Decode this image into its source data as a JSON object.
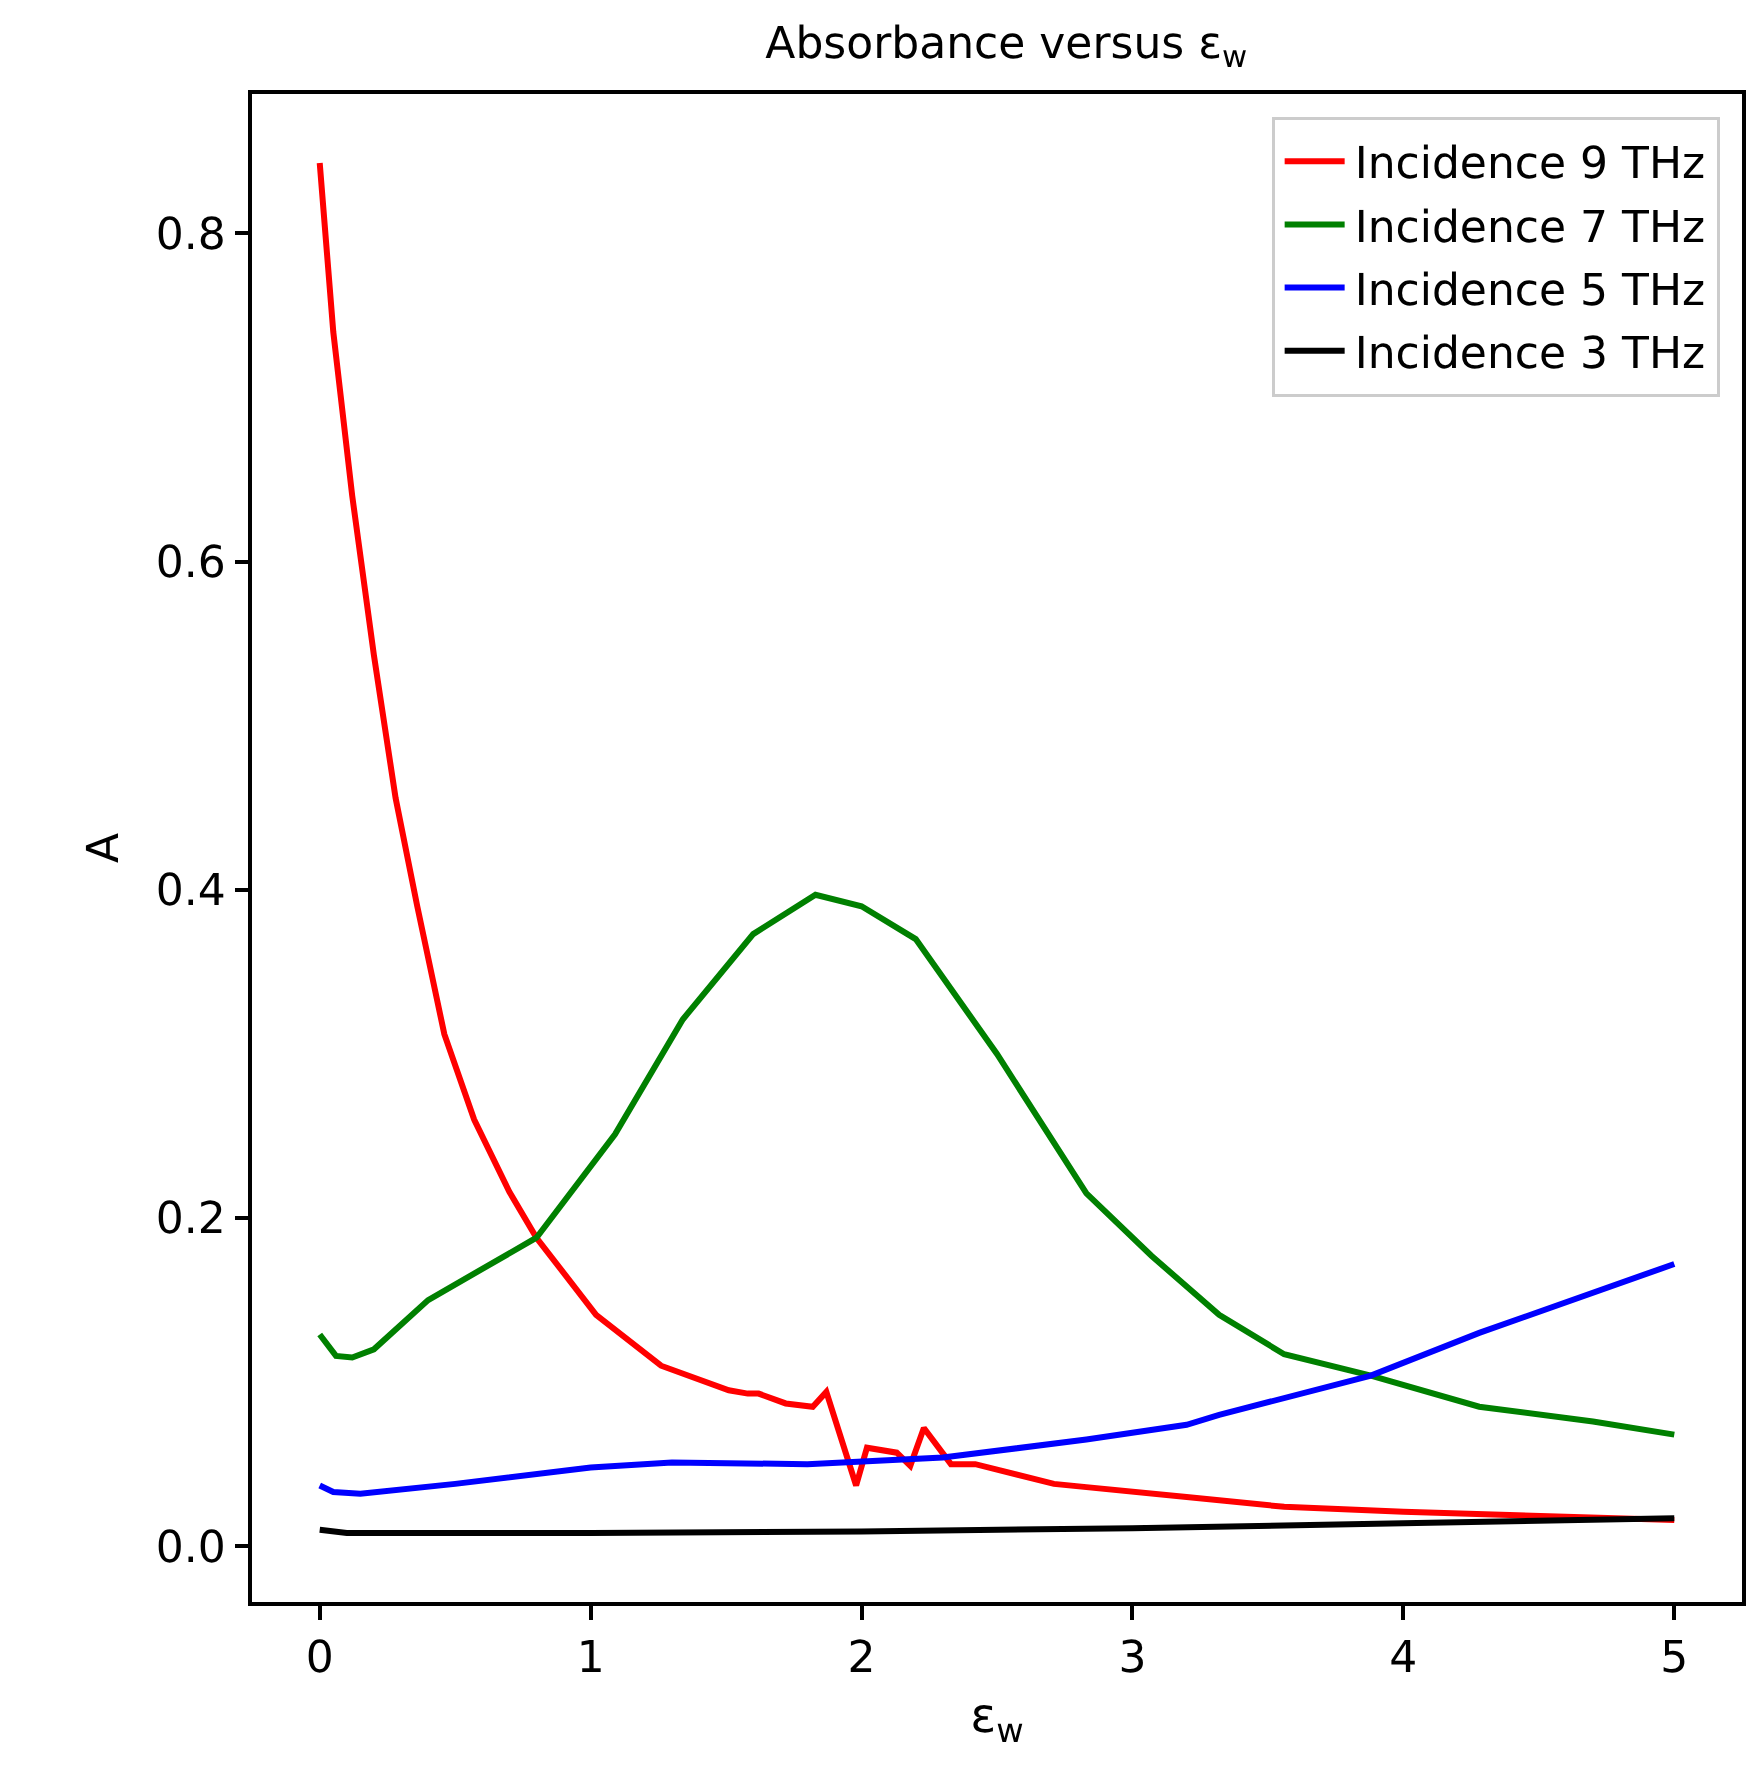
{
  "chart_data": {
    "type": "line",
    "title": "Absorbance versus ε$_{w}$",
    "xlabel": "ε$_{w}$",
    "ylabel": "A",
    "xlim": [
      -0.25,
      5.25
    ],
    "ylim": [
      -0.034,
      0.885
    ],
    "xticks": [
      0,
      1,
      2,
      3,
      4,
      5
    ],
    "yticks": [
      {
        "value": 0,
        "label": "0.0"
      },
      {
        "value": 0.2,
        "label": "0.2"
      },
      {
        "value": 0.4,
        "label": "0.4"
      },
      {
        "value": 0.6,
        "label": "0.6"
      },
      {
        "value": 0.8,
        "label": "0.8"
      }
    ],
    "legend": "top right",
    "marker": "none",
    "line_style": "solid",
    "series": [
      {
        "name": "Incidence 9 THz",
        "color": "#ff0000",
        "x": [
          0,
          0.05,
          0.12,
          0.2,
          0.28,
          0.36,
          0.46,
          0.57,
          0.7,
          0.8,
          1.02,
          1.26,
          1.51,
          1.58,
          1.62,
          1.72,
          1.82,
          1.87,
          1.98,
          2.02,
          2.13,
          2.18,
          2.23,
          2.33,
          2.42,
          2.71,
          2.83,
          3.2,
          3.56,
          4.0,
          5.0
        ],
        "values": [
          0.843,
          0.74,
          0.64,
          0.543,
          0.456,
          0.39,
          0.312,
          0.26,
          0.216,
          0.188,
          0.141,
          0.11,
          0.095,
          0.093,
          0.093,
          0.087,
          0.085,
          0.094,
          0.037,
          0.06,
          0.057,
          0.049,
          0.072,
          0.05,
          0.05,
          0.038,
          0.036,
          0.03,
          0.024,
          0.021,
          0.016
        ]
      },
      {
        "name": "Incidence 7 THz",
        "color": "#008000",
        "x": [
          0,
          0.06,
          0.12,
          0.2,
          0.4,
          0.8,
          1.09,
          1.34,
          1.6,
          1.83,
          2.0,
          2.2,
          2.5,
          2.83,
          3.07,
          3.32,
          3.56,
          3.88,
          4.28,
          4.7,
          5.0
        ],
        "values": [
          0.129,
          0.116,
          0.115,
          0.12,
          0.15,
          0.188,
          0.251,
          0.321,
          0.373,
          0.397,
          0.39,
          0.37,
          0.3,
          0.215,
          0.177,
          0.141,
          0.117,
          0.104,
          0.085,
          0.076,
          0.068
        ]
      },
      {
        "name": "Incidence 5 THz",
        "color": "#0000ff",
        "x": [
          0,
          0.05,
          0.15,
          0.5,
          1.0,
          1.3,
          1.8,
          2.3,
          2.83,
          3.2,
          3.32,
          3.88,
          4.28,
          5.0
        ],
        "values": [
          0.037,
          0.033,
          0.032,
          0.038,
          0.048,
          0.051,
          0.05,
          0.054,
          0.065,
          0.074,
          0.08,
          0.104,
          0.13,
          0.172
        ]
      },
      {
        "name": "Incidence 3 THz",
        "color": "#000000",
        "x": [
          0,
          0.1,
          1,
          2,
          3,
          4,
          5
        ],
        "values": [
          0.01,
          0.008,
          0.008,
          0.009,
          0.011,
          0.014,
          0.017
        ]
      }
    ]
  }
}
